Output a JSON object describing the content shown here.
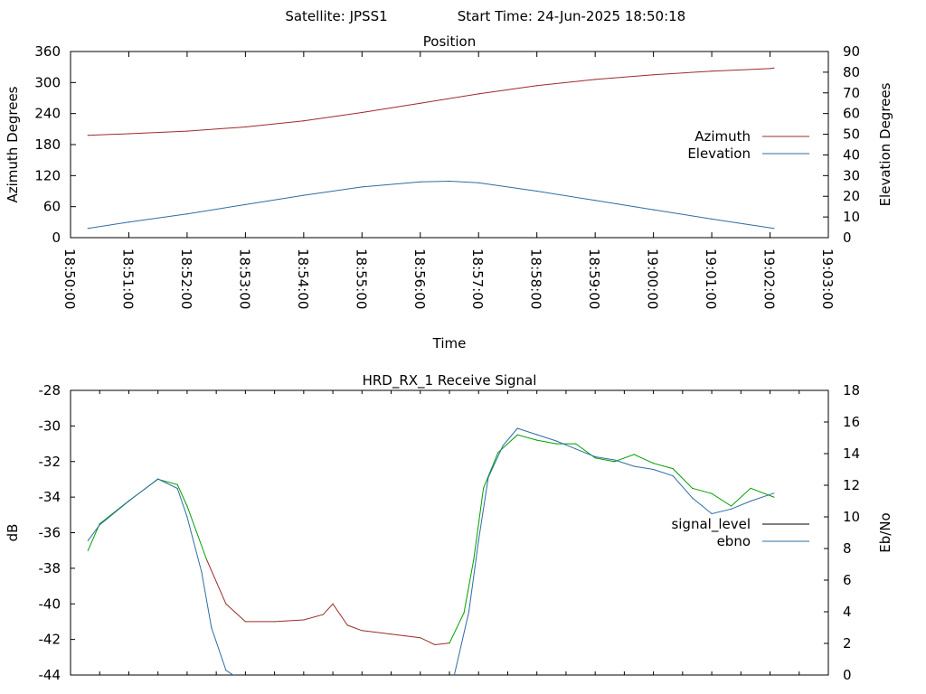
{
  "header": {
    "satellite": "Satellite: JPSS1",
    "start_time": "Start Time: 24-Jun-2025 18:50:18"
  },
  "chart_data": [
    {
      "type": "line",
      "title": "Position",
      "xlabel": "Time",
      "ylabel": "Azimuth Degrees",
      "y2label": "Elevation Degrees",
      "xlim": [
        "18:50:00",
        "19:03:00"
      ],
      "ylim": [
        0,
        360
      ],
      "y2lim": [
        0,
        90
      ],
      "x_ticks": [
        "18:50:00",
        "18:51:00",
        "18:52:00",
        "18:53:00",
        "18:54:00",
        "18:55:00",
        "18:56:00",
        "18:57:00",
        "18:58:00",
        "18:59:00",
        "19:00:00",
        "19:01:00",
        "19:02:00",
        "19:03:00"
      ],
      "y_ticks": [
        0,
        60,
        120,
        180,
        240,
        300,
        360
      ],
      "y2_ticks": [
        0,
        10,
        20,
        30,
        40,
        50,
        60,
        70,
        80,
        90
      ],
      "legend_position": "right",
      "grid": false,
      "series": [
        {
          "name": "Azimuth",
          "axis": "y",
          "color": "#a0292c",
          "x": [
            "18:50:18",
            "18:51:00",
            "18:52:00",
            "18:53:00",
            "18:54:00",
            "18:55:00",
            "18:56:00",
            "18:57:00",
            "18:58:00",
            "18:59:00",
            "19:00:00",
            "19:01:00",
            "19:02:00",
            "19:02:04"
          ],
          "values": [
            198,
            201,
            206,
            214,
            226,
            242,
            260,
            278,
            294,
            306,
            315,
            322,
            327,
            328
          ]
        },
        {
          "name": "Elevation",
          "axis": "y2",
          "color": "#2e6da4",
          "x": [
            "18:50:18",
            "18:51:00",
            "18:52:00",
            "18:53:00",
            "18:54:00",
            "18:55:00",
            "18:56:00",
            "18:56:30",
            "18:57:00",
            "18:58:00",
            "18:59:00",
            "19:00:00",
            "19:01:00",
            "19:02:04"
          ],
          "values": [
            4.5,
            7.5,
            11.5,
            16,
            20.5,
            24.5,
            27,
            27.3,
            26.5,
            22.5,
            18,
            13.5,
            9,
            4.5
          ]
        }
      ]
    },
    {
      "type": "line",
      "title": "HRD_RX_1 Receive Signal",
      "ylabel": "dB",
      "y2label": "Eb/No",
      "xlim": [
        "18:50:00",
        "19:03:00"
      ],
      "ylim": [
        -44,
        -28
      ],
      "y2lim": [
        0,
        18
      ],
      "y_ticks": [
        -44,
        -42,
        -40,
        -38,
        -36,
        -34,
        -32,
        -30,
        -28
      ],
      "y2_ticks": [
        0,
        2,
        4,
        6,
        8,
        10,
        12,
        14,
        16,
        18
      ],
      "legend_position": "right",
      "grid": false,
      "series": [
        {
          "name": "signal_level",
          "axis": "y",
          "color": "#000000",
          "segment_colors": [
            "#00a000",
            "#a0292c"
          ],
          "x": [
            "18:50:18",
            "18:50:30",
            "18:51:00",
            "18:51:30",
            "18:51:50",
            "18:52:00",
            "18:52:20",
            "18:52:40",
            "18:53:00",
            "18:53:30",
            "18:54:00",
            "18:54:20",
            "18:54:30",
            "18:54:45",
            "18:55:00",
            "18:55:30",
            "18:56:00",
            "18:56:15",
            "18:56:30",
            "18:56:45",
            "18:56:55",
            "18:57:05",
            "18:57:20",
            "18:57:40",
            "18:58:00",
            "18:58:20",
            "18:58:40",
            "18:59:00",
            "18:59:20",
            "18:59:40",
            "19:00:00",
            "19:00:20",
            "19:00:40",
            "19:01:00",
            "19:01:20",
            "19:01:40",
            "19:02:04"
          ],
          "values": [
            -37,
            -35.5,
            -34.2,
            -33,
            -33.3,
            -34.5,
            -37.5,
            -40,
            -41,
            -41,
            -40.9,
            -40.6,
            -40,
            -41.2,
            -41.5,
            -41.7,
            -41.9,
            -42.3,
            -42.2,
            -40.5,
            -37.5,
            -33.5,
            -31.5,
            -30.5,
            -30.8,
            -31,
            -31,
            -31.8,
            -32,
            -31.6,
            -32.1,
            -32.4,
            -33.5,
            -33.8,
            -34.5,
            -33.5,
            -34
          ]
        },
        {
          "name": "ebno",
          "axis": "y2",
          "color": "#2e6da4",
          "x": [
            "18:50:18",
            "18:50:30",
            "18:51:00",
            "18:51:30",
            "18:51:50",
            "18:52:00",
            "18:52:15",
            "18:52:25",
            "18:52:40",
            "18:53:00",
            "18:54:00",
            "18:55:00",
            "18:55:30",
            "18:56:00",
            "18:56:30",
            "18:56:35",
            "18:56:50",
            "18:57:00",
            "18:57:10",
            "18:57:25",
            "18:57:40",
            "18:58:00",
            "18:58:20",
            "18:58:40",
            "18:59:00",
            "18:59:20",
            "18:59:40",
            "19:00:00",
            "19:00:20",
            "19:00:40",
            "19:01:00",
            "19:01:20",
            "19:01:40",
            "19:02:04"
          ],
          "values": [
            8.5,
            9.5,
            11,
            12.4,
            11.8,
            10,
            6.5,
            3,
            0.3,
            -0.5,
            -0.3,
            -0.5,
            -0.6,
            -0.6,
            -0.4,
            0,
            4,
            8.5,
            12.5,
            14.5,
            15.6,
            15.2,
            14.8,
            14.3,
            13.8,
            13.6,
            13.2,
            13,
            12.6,
            11.2,
            10.2,
            10.5,
            11,
            11.5
          ]
        }
      ]
    }
  ]
}
